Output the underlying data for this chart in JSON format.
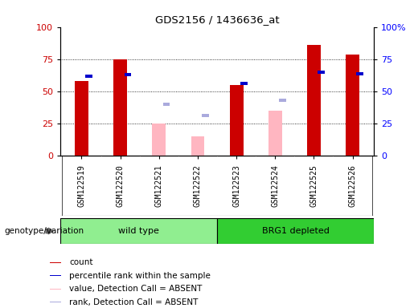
{
  "title": "GDS2156 / 1436636_at",
  "samples": [
    "GSM122519",
    "GSM122520",
    "GSM122521",
    "GSM122522",
    "GSM122523",
    "GSM122524",
    "GSM122525",
    "GSM122526"
  ],
  "count_values": [
    58,
    75,
    null,
    null,
    55,
    null,
    86,
    79
  ],
  "rank_values": [
    62,
    63,
    null,
    null,
    56,
    null,
    65,
    64
  ],
  "absent_value": [
    null,
    null,
    25,
    15,
    null,
    35,
    null,
    null
  ],
  "absent_rank": [
    null,
    null,
    40,
    31,
    null,
    43,
    null,
    null
  ],
  "groups": [
    {
      "label": "wild type",
      "start": 0,
      "end": 4,
      "color": "#90EE90"
    },
    {
      "label": "BRG1 depleted",
      "start": 4,
      "end": 8,
      "color": "#32CD32"
    }
  ],
  "ylim": [
    0,
    100
  ],
  "yticks": [
    0,
    25,
    50,
    75,
    100
  ],
  "right_ytick_labels": [
    "0",
    "25",
    "50",
    "75",
    "100%"
  ],
  "count_color": "#CC0000",
  "rank_color": "#0000CC",
  "absent_value_color": "#FFB6C1",
  "absent_rank_color": "#AAAADD",
  "xtick_bg_color": "#C8C8C8",
  "genotype_label": "genotype/variation",
  "legend_items": [
    {
      "label": "count",
      "color": "#CC0000"
    },
    {
      "label": "percentile rank within the sample",
      "color": "#0000CC"
    },
    {
      "label": "value, Detection Call = ABSENT",
      "color": "#FFB6C1"
    },
    {
      "label": "rank, Detection Call = ABSENT",
      "color": "#AAAADD"
    }
  ]
}
